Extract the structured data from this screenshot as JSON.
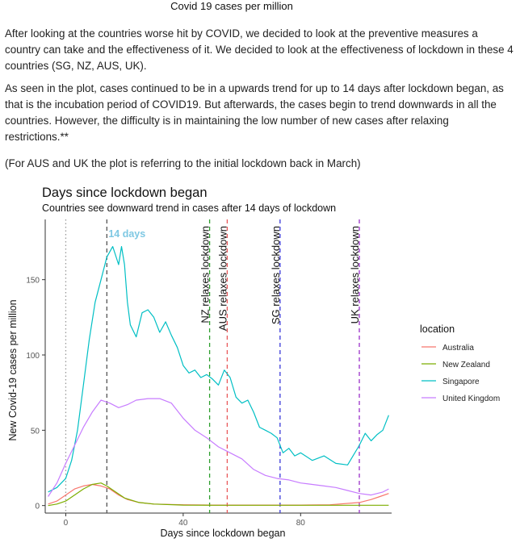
{
  "page": {
    "title": "Covid 19 cases per million",
    "paragraphs": [
      "After looking at the countries worse hit by COVID, we decided to look at the preventive measures a country can take and the effectiveness of it. We decided to look at the effectiveness of lockdown in these 4 countries (SG, NZ, AUS, UK).",
      "As seen in the plot, cases continued to be in a upwards trend for up to 14 days after lockdown began, as that is the incubation period of COVID19. But afterwards, the cases begin to trend downwards in all the countries. However, the difficulty is in maintaining the low number of new cases after relaxing restrictions.**",
      "(For AUS and UK the plot is referring to the initial lockdown back in March)"
    ]
  },
  "chart_data": {
    "type": "line",
    "title": "Days since lockdown began",
    "subtitle": "Countries see downward trend in cases after 14 days of lockdown",
    "xlabel": "Days since lockdown began",
    "ylabel": "New Covid-19 cases per million",
    "xlim": [
      -7,
      111
    ],
    "ylim": [
      -5,
      190
    ],
    "x_ticks": [
      0,
      40,
      80
    ],
    "y_ticks": [
      0,
      50,
      100,
      150
    ],
    "grid": false,
    "legend": {
      "title": "location",
      "placement": "right"
    },
    "annotations": [
      {
        "x": 0,
        "label": "",
        "color": "#999999",
        "style": "dotted"
      },
      {
        "x": 14,
        "label": "14 days",
        "color": "#555555",
        "style": "dashed",
        "label_color": "#7ec8e3",
        "orientation": "horizontal"
      },
      {
        "x": 49,
        "label": "NZ relaxes lockdown",
        "color": "#2e9e2e",
        "style": "dashed",
        "orientation": "vertical"
      },
      {
        "x": 55,
        "label": "AUS relaxes lockdown",
        "color": "#e8585a",
        "style": "dashed",
        "orientation": "vertical"
      },
      {
        "x": 73,
        "label": "SG relaxes lockdown",
        "color": "#3a3ad8",
        "style": "dashed",
        "orientation": "vertical"
      },
      {
        "x": 100,
        "label": "UK relaxes lockdown",
        "color": "#9b30c8",
        "style": "dashed",
        "orientation": "vertical"
      }
    ],
    "series": [
      {
        "name": "Australia",
        "color": "#f8766d",
        "x": [
          -6,
          -3,
          0,
          3,
          6,
          9,
          12,
          15,
          18,
          21,
          25,
          30,
          40,
          50,
          60,
          70,
          80,
          90,
          100,
          104,
          107,
          110
        ],
        "values": [
          1,
          3,
          7,
          11,
          13,
          14,
          13,
          11,
          7,
          4,
          2,
          1,
          0.5,
          0.3,
          0.3,
          0.3,
          0.3,
          0.5,
          2,
          4,
          6,
          8
        ]
      },
      {
        "name": "New Zealand",
        "color": "#7cae00",
        "x": [
          -6,
          -3,
          0,
          3,
          6,
          9,
          12,
          14,
          17,
          20,
          25,
          30,
          40,
          50,
          60,
          70,
          80,
          90,
          100,
          110
        ],
        "values": [
          0,
          1,
          3,
          7,
          11,
          14,
          15,
          13,
          9,
          5,
          2,
          1,
          0.3,
          0.2,
          0.2,
          0.2,
          0.2,
          0.2,
          0.2,
          0.2
        ]
      },
      {
        "name": "Singapore",
        "color": "#00bfc4",
        "x": [
          -6,
          -3,
          0,
          2,
          4,
          6,
          8,
          10,
          12,
          14,
          16,
          18,
          19,
          20,
          21,
          22,
          24,
          26,
          28,
          30,
          32,
          34,
          36,
          38,
          40,
          42,
          44,
          46,
          48,
          50,
          52,
          54,
          56,
          58,
          60,
          62,
          64,
          66,
          68,
          70,
          72,
          74,
          76,
          78,
          80,
          84,
          88,
          92,
          96,
          100,
          102,
          104,
          106,
          108,
          110
        ],
        "values": [
          9,
          12,
          18,
          30,
          50,
          80,
          110,
          135,
          150,
          165,
          172,
          160,
          172,
          160,
          135,
          120,
          112,
          128,
          130,
          125,
          115,
          122,
          113,
          105,
          93,
          88,
          90,
          85,
          87,
          84,
          80,
          90,
          85,
          72,
          68,
          70,
          62,
          52,
          50,
          48,
          45,
          35,
          38,
          33,
          35,
          30,
          33,
          28,
          27,
          40,
          48,
          43,
          47,
          50,
          60
        ]
      },
      {
        "name": "United Kingdom",
        "color": "#c77cff",
        "x": [
          -6,
          -3,
          0,
          3,
          6,
          9,
          12,
          15,
          18,
          21,
          24,
          28,
          32,
          36,
          40,
          44,
          48,
          52,
          56,
          60,
          64,
          68,
          72,
          76,
          80,
          84,
          88,
          92,
          96,
          100,
          104,
          108,
          110
        ],
        "values": [
          6,
          15,
          28,
          40,
          52,
          62,
          70,
          68,
          65,
          67,
          70,
          71,
          71,
          68,
          58,
          50,
          45,
          39,
          35,
          31,
          24,
          20,
          18,
          17,
          15,
          14,
          13,
          12,
          10,
          8,
          7,
          9,
          11
        ]
      }
    ]
  }
}
